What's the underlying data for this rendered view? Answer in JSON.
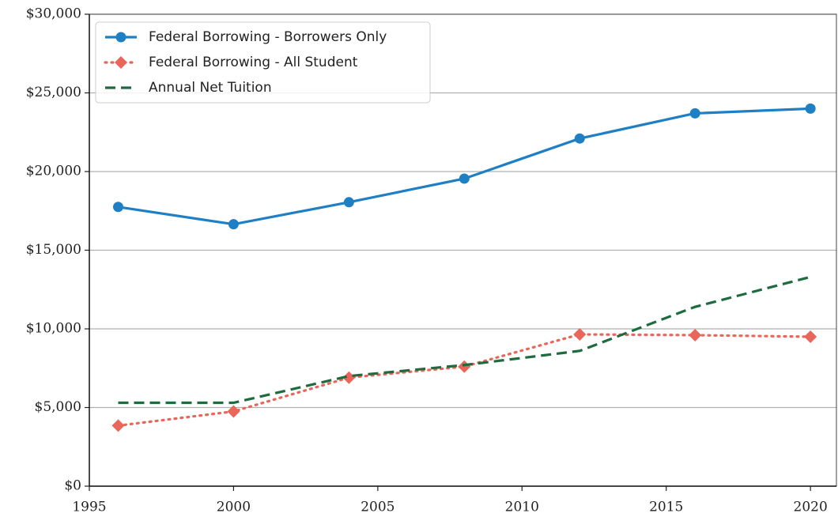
{
  "chart_data": {
    "type": "line",
    "x": [
      1996,
      2000,
      2004,
      2008,
      2012,
      2016,
      2020
    ],
    "series": [
      {
        "name": "Federal Borrowing - Borrowers Only",
        "color": "#1f7fc4",
        "line_style": "solid",
        "marker": "circle",
        "values": [
          17750,
          16650,
          18050,
          19550,
          22100,
          23700,
          24000
        ]
      },
      {
        "name": "Federal Borrowing - All Student",
        "color": "#e8675a",
        "line_style": "dotted",
        "marker": "diamond",
        "values": [
          3850,
          4750,
          6900,
          7600,
          9650,
          9600,
          9500
        ]
      },
      {
        "name": "Annual Net Tuition",
        "color": "#1e6b3f",
        "line_style": "dashed",
        "marker": "none",
        "values": [
          5300,
          5300,
          7000,
          7700,
          8600,
          11400,
          13300
        ]
      }
    ],
    "xlim": [
      1995,
      2020.9
    ],
    "xticks": [
      1995,
      2000,
      2005,
      2010,
      2015,
      2020
    ],
    "ylim": [
      0,
      30000
    ],
    "yticks": [
      {
        "value": 0,
        "label": "$0"
      },
      {
        "value": 5000,
        "label": "$5,000"
      },
      {
        "value": 10000,
        "label": "$10,000"
      },
      {
        "value": 15000,
        "label": "$15,000"
      },
      {
        "value": 20000,
        "label": "$20,000"
      },
      {
        "value": 25000,
        "label": "$25,000"
      },
      {
        "value": 30000,
        "label": "$30,000"
      }
    ],
    "grid": true,
    "legend": "upper-left"
  }
}
